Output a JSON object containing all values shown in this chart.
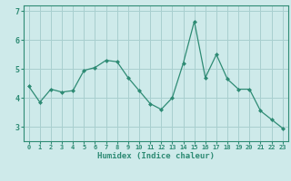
{
  "x": [
    0,
    1,
    2,
    3,
    4,
    5,
    6,
    7,
    8,
    9,
    10,
    11,
    12,
    13,
    14,
    15,
    16,
    17,
    18,
    19,
    20,
    21,
    22,
    23
  ],
  "y": [
    4.4,
    3.85,
    4.3,
    4.2,
    4.25,
    4.95,
    5.05,
    5.3,
    5.25,
    4.7,
    4.25,
    3.8,
    3.6,
    4.0,
    5.2,
    6.65,
    4.7,
    5.5,
    4.65,
    4.3,
    4.3,
    3.55,
    3.25,
    2.95
  ],
  "line_color": "#2e8b74",
  "marker": "D",
  "marker_size": 2,
  "bg_color": "#ceeaea",
  "grid_color": "#a8cfcf",
  "xlabel": "Humidex (Indice chaleur)",
  "ylim": [
    2.5,
    7.2
  ],
  "xlim": [
    -0.5,
    23.5
  ],
  "yticks": [
    3,
    4,
    5,
    6,
    7
  ],
  "xticks": [
    0,
    1,
    2,
    3,
    4,
    5,
    6,
    7,
    8,
    9,
    10,
    11,
    12,
    13,
    14,
    15,
    16,
    17,
    18,
    19,
    20,
    21,
    22,
    23
  ]
}
